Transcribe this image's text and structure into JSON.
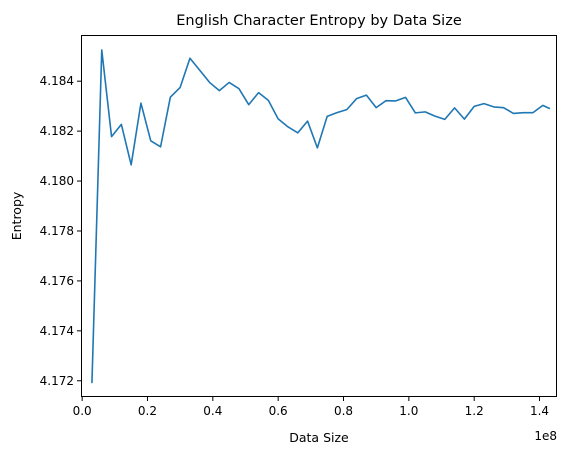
{
  "chart_data": {
    "type": "line",
    "title": "English Character Entropy by Data Size",
    "xlabel": "Data Size",
    "ylabel": "Entropy",
    "x_offset_label": "1e8",
    "x_scale": 100000000,
    "xlim": [
      -0.0035,
      1.4535
    ],
    "ylim": [
      4.17135,
      4.18585
    ],
    "xticks": [
      0.0,
      0.2,
      0.4,
      0.6,
      0.8,
      1.0,
      1.2,
      1.4
    ],
    "xtick_labels": [
      "0.0",
      "0.2",
      "0.4",
      "0.6",
      "0.8",
      "1.0",
      "1.2",
      "1.4"
    ],
    "yticks": [
      4.172,
      4.174,
      4.176,
      4.178,
      4.18,
      4.182,
      4.184
    ],
    "ytick_labels": [
      "4.172",
      "4.174",
      "4.176",
      "4.178",
      "4.180",
      "4.182",
      "4.184"
    ],
    "grid": false,
    "legend": "none",
    "series": [
      {
        "color": "#1f77b4",
        "x": [
          0.03,
          0.06,
          0.09,
          0.12,
          0.15,
          0.18,
          0.21,
          0.24,
          0.27,
          0.3,
          0.33,
          0.36,
          0.39,
          0.42,
          0.45,
          0.48,
          0.51,
          0.54,
          0.57,
          0.6,
          0.63,
          0.66,
          0.69,
          0.72,
          0.75,
          0.78,
          0.81,
          0.84,
          0.87,
          0.9,
          0.93,
          0.96,
          0.99,
          1.02,
          1.05,
          1.08,
          1.11,
          1.14,
          1.17,
          1.2,
          1.23,
          1.26,
          1.29,
          1.32,
          1.35,
          1.38,
          1.41,
          1.43
        ],
        "y": [
          4.17193,
          4.18525,
          4.18178,
          4.18227,
          4.18065,
          4.18312,
          4.18161,
          4.18137,
          4.18336,
          4.18375,
          4.18492,
          4.18444,
          4.18395,
          4.18362,
          4.18395,
          4.1837,
          4.18306,
          4.18354,
          4.18323,
          4.18249,
          4.18217,
          4.18193,
          4.1824,
          4.18133,
          4.18259,
          4.18274,
          4.18286,
          4.1833,
          4.18344,
          4.18294,
          4.18322,
          4.18321,
          4.18335,
          4.18273,
          4.18277,
          4.1826,
          4.18247,
          4.18293,
          4.18248,
          4.18299,
          4.1831,
          4.18297,
          4.18294,
          4.18271,
          4.18274,
          4.18274,
          4.18303,
          4.18291
        ]
      }
    ]
  }
}
